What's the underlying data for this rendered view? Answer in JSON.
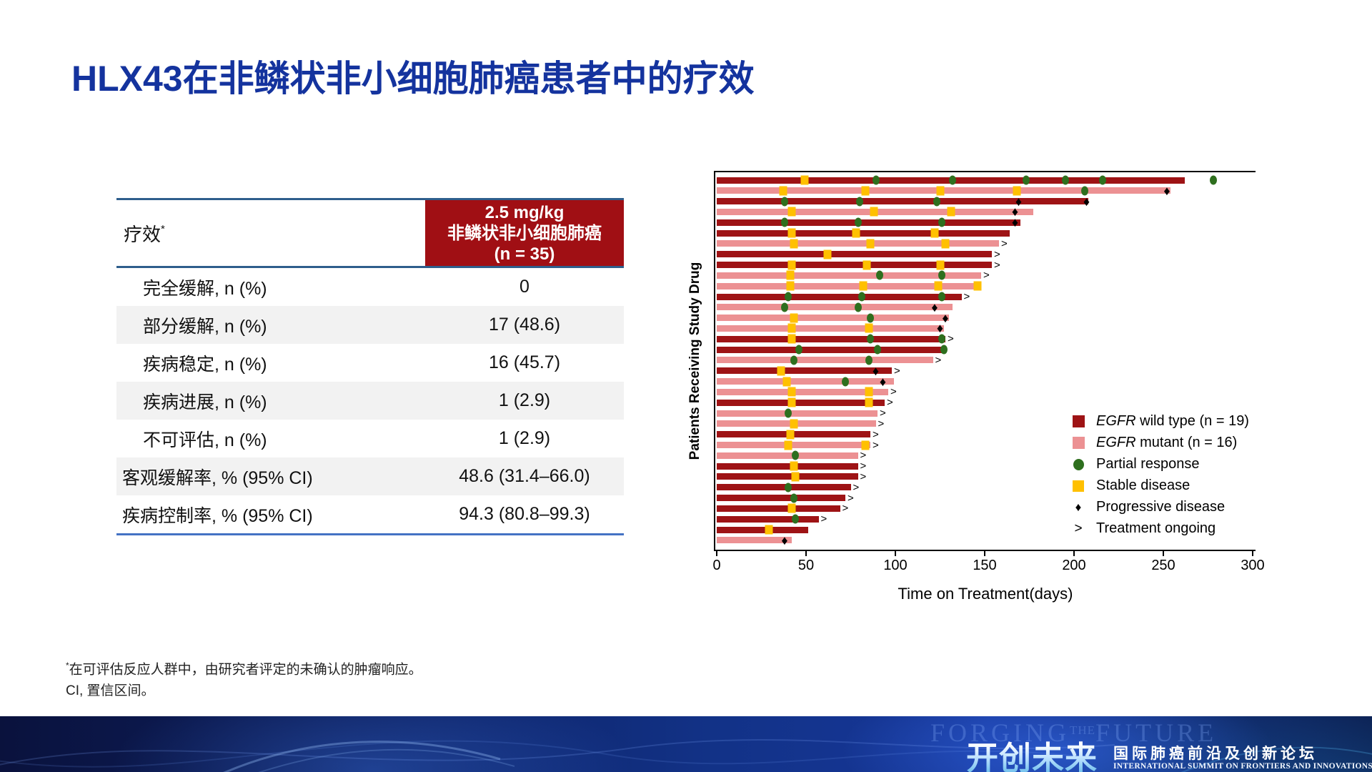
{
  "title": "HLX43在非鳞状非小细胞肺癌患者中的疗效",
  "table": {
    "header_left": "疗效",
    "header_sup": "*",
    "header_right_lines": [
      "2.5 mg/kg",
      "非鳞状非小细胞肺癌",
      "(n = 35)"
    ],
    "rows": [
      {
        "label": "完全缓解, n (%)",
        "value": "0",
        "indent": true,
        "shaded": false
      },
      {
        "label": "部分缓解, n (%)",
        "value": "17 (48.6)",
        "indent": true,
        "shaded": true
      },
      {
        "label": "疾病稳定, n (%)",
        "value": "16 (45.7)",
        "indent": true,
        "shaded": false
      },
      {
        "label": "疾病进展, n (%)",
        "value": "1 (2.9)",
        "indent": true,
        "shaded": true
      },
      {
        "label": "不可评估, n (%)",
        "value": "1 (2.9)",
        "indent": true,
        "shaded": false
      },
      {
        "label": "客观缓解率, % (95% CI)",
        "value": "48.6 (31.4–66.0)",
        "indent": false,
        "shaded": true
      },
      {
        "label": "疾病控制率, % (95% CI)",
        "value": "94.3 (80.8–99.3)",
        "indent": false,
        "shaded": false
      }
    ]
  },
  "chart_data": {
    "type": "bar",
    "orientation": "horizontal-swimmer",
    "title": "",
    "xlabel": "Time on Treatment(days)",
    "ylabel": "Patients Receiving Study Drug",
    "xlim": [
      0,
      300
    ],
    "xticks": [
      0,
      50,
      100,
      150,
      200,
      250,
      300
    ],
    "grid": false,
    "legend_position": "right-lower",
    "colors": {
      "egfr_wild_type": "#9E1315",
      "egfr_mutant": "#EC9193",
      "partial_response": "#2E6F1E",
      "stable_disease": "#FFC000",
      "progressive_disease": "#000000"
    },
    "glyphs": {
      "pd": "♦",
      "ongoing": ">"
    },
    "legend": [
      {
        "type": "wt",
        "italic": "EGFR",
        "label": " wild type (n = 19)"
      },
      {
        "type": "mu",
        "italic": "EGFR",
        "label": " mutant (n = 16)"
      },
      {
        "type": "pr",
        "italic": "",
        "label": "Partial response"
      },
      {
        "type": "sd",
        "italic": "",
        "label": "Stable disease"
      },
      {
        "type": "pd",
        "italic": "",
        "label": "Progressive disease"
      },
      {
        "type": "on",
        "italic": "",
        "label": "Treatment ongoing"
      }
    ],
    "bars": [
      {
        "g": "wt",
        "end": 262,
        "ongoing": false,
        "markers": [
          [
            "sd",
            49
          ],
          [
            "pr",
            89
          ],
          [
            "pr",
            132
          ],
          [
            "pr",
            173
          ],
          [
            "pr",
            195
          ],
          [
            "pr",
            216
          ],
          [
            "pr",
            278
          ]
        ]
      },
      {
        "g": "mu",
        "end": 254,
        "ongoing": false,
        "markers": [
          [
            "sd",
            37
          ],
          [
            "sd",
            83
          ],
          [
            "sd",
            125
          ],
          [
            "sd",
            168
          ],
          [
            "pr",
            206
          ],
          [
            "pd",
            252
          ]
        ]
      },
      {
        "g": "wt",
        "end": 208,
        "ongoing": false,
        "markers": [
          [
            "pr",
            38
          ],
          [
            "pr",
            80
          ],
          [
            "pr",
            123
          ],
          [
            "pd",
            169
          ],
          [
            "pd",
            207
          ]
        ]
      },
      {
        "g": "mu",
        "end": 177,
        "ongoing": false,
        "markers": [
          [
            "sd",
            42
          ],
          [
            "sd",
            88
          ],
          [
            "sd",
            131
          ],
          [
            "pd",
            167
          ]
        ]
      },
      {
        "g": "wt",
        "end": 170,
        "ongoing": false,
        "markers": [
          [
            "pr",
            38
          ],
          [
            "pr",
            79
          ],
          [
            "pr",
            126
          ],
          [
            "pd",
            167
          ]
        ]
      },
      {
        "g": "wt",
        "end": 164,
        "ongoing": false,
        "markers": [
          [
            "sd",
            42
          ],
          [
            "sd",
            78
          ],
          [
            "sd",
            122
          ]
        ]
      },
      {
        "g": "mu",
        "end": 158,
        "ongoing": true,
        "markers": [
          [
            "sd",
            43
          ],
          [
            "sd",
            86
          ],
          [
            "sd",
            128
          ]
        ]
      },
      {
        "g": "wt",
        "end": 154,
        "ongoing": true,
        "markers": [
          [
            "sd",
            62
          ]
        ]
      },
      {
        "g": "wt",
        "end": 154,
        "ongoing": true,
        "markers": [
          [
            "sd",
            42
          ],
          [
            "sd",
            84
          ],
          [
            "sd",
            125
          ]
        ]
      },
      {
        "g": "mu",
        "end": 148,
        "ongoing": true,
        "markers": [
          [
            "sd",
            41
          ],
          [
            "pr",
            91
          ],
          [
            "pr",
            126
          ]
        ]
      },
      {
        "g": "mu",
        "end": 148,
        "ongoing": false,
        "markers": [
          [
            "sd",
            41
          ],
          [
            "sd",
            82
          ],
          [
            "sd",
            124
          ],
          [
            "sd",
            146
          ]
        ]
      },
      {
        "g": "wt",
        "end": 137,
        "ongoing": true,
        "markers": [
          [
            "pr",
            40
          ],
          [
            "pr",
            81
          ],
          [
            "pr",
            126
          ]
        ]
      },
      {
        "g": "mu",
        "end": 132,
        "ongoing": false,
        "markers": [
          [
            "pr",
            38
          ],
          [
            "pr",
            79
          ],
          [
            "pd",
            122
          ]
        ]
      },
      {
        "g": "mu",
        "end": 130,
        "ongoing": false,
        "markers": [
          [
            "sd",
            43
          ],
          [
            "pr",
            86
          ],
          [
            "pd",
            128
          ]
        ]
      },
      {
        "g": "mu",
        "end": 127,
        "ongoing": false,
        "markers": [
          [
            "sd",
            42
          ],
          [
            "sd",
            85
          ],
          [
            "pd",
            125
          ]
        ]
      },
      {
        "g": "wt",
        "end": 128,
        "ongoing": true,
        "markers": [
          [
            "sd",
            42
          ],
          [
            "pr",
            86
          ],
          [
            "pr",
            126
          ]
        ]
      },
      {
        "g": "wt",
        "end": 128,
        "ongoing": false,
        "markers": [
          [
            "pr",
            46
          ],
          [
            "pr",
            90
          ],
          [
            "pr",
            127
          ]
        ]
      },
      {
        "g": "mu",
        "end": 121,
        "ongoing": true,
        "markers": [
          [
            "pr",
            43
          ],
          [
            "pr",
            85
          ]
        ]
      },
      {
        "g": "wt",
        "end": 98,
        "ongoing": true,
        "markers": [
          [
            "sd",
            36
          ],
          [
            "pd",
            89
          ]
        ]
      },
      {
        "g": "mu",
        "end": 99,
        "ongoing": false,
        "markers": [
          [
            "sd",
            39
          ],
          [
            "pr",
            72
          ],
          [
            "pd",
            93
          ]
        ]
      },
      {
        "g": "mu",
        "end": 96,
        "ongoing": true,
        "markers": [
          [
            "sd",
            42
          ],
          [
            "sd",
            85
          ]
        ]
      },
      {
        "g": "wt",
        "end": 94,
        "ongoing": true,
        "markers": [
          [
            "sd",
            42
          ],
          [
            "sd",
            85
          ]
        ]
      },
      {
        "g": "mu",
        "end": 90,
        "ongoing": true,
        "markers": [
          [
            "pr",
            40
          ]
        ]
      },
      {
        "g": "mu",
        "end": 89,
        "ongoing": true,
        "markers": [
          [
            "sd",
            43
          ]
        ]
      },
      {
        "g": "wt",
        "end": 86,
        "ongoing": true,
        "markers": [
          [
            "sd",
            41
          ]
        ]
      },
      {
        "g": "mu",
        "end": 86,
        "ongoing": true,
        "markers": [
          [
            "sd",
            40
          ],
          [
            "sd",
            83
          ]
        ]
      },
      {
        "g": "mu",
        "end": 79,
        "ongoing": true,
        "markers": [
          [
            "pr",
            44
          ]
        ]
      },
      {
        "g": "wt",
        "end": 79,
        "ongoing": true,
        "markers": [
          [
            "sd",
            43
          ]
        ]
      },
      {
        "g": "wt",
        "end": 79,
        "ongoing": true,
        "markers": [
          [
            "sd",
            44
          ]
        ]
      },
      {
        "g": "wt",
        "end": 75,
        "ongoing": true,
        "markers": [
          [
            "pr",
            40
          ]
        ]
      },
      {
        "g": "wt",
        "end": 72,
        "ongoing": true,
        "markers": [
          [
            "pr",
            43
          ]
        ]
      },
      {
        "g": "wt",
        "end": 69,
        "ongoing": true,
        "markers": [
          [
            "sd",
            42
          ]
        ]
      },
      {
        "g": "wt",
        "end": 57,
        "ongoing": true,
        "markers": [
          [
            "pr",
            44
          ]
        ]
      },
      {
        "g": "wt",
        "end": 51,
        "ongoing": false,
        "markers": [
          [
            "sd",
            29
          ]
        ]
      },
      {
        "g": "mu",
        "end": 42,
        "ongoing": false,
        "markers": [
          [
            "pd",
            38
          ]
        ]
      }
    ]
  },
  "footnotes": [
    {
      "sup": "*",
      "text": "在可评估反应人群中，由研究者评定的未确认的肿瘤响应。"
    },
    {
      "sup": "",
      "text": "CI, 置信区间。"
    }
  ],
  "banner": {
    "ghost_1": "FORGING",
    "ghost_2": "THE",
    "ghost_3": "FUTURE",
    "logo": "开创未来",
    "subtitle_cn": "国际肺癌前沿及创新论坛",
    "subtitle_en": "INTERNATIONAL SUMMIT ON FRONTIERS AND INNOVATIONS IN LUNG CANCER"
  }
}
